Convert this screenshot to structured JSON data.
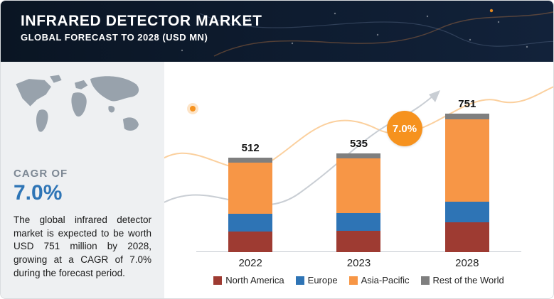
{
  "header": {
    "title": "INFRARED DETECTOR MARKET",
    "subtitle": "GLOBAL FORECAST TO 2028 (USD MN)"
  },
  "sidebar": {
    "cagr_label": "CAGR OF",
    "cagr_value": "7.0%",
    "description": "The global infrared detector market is expected to be worth USD 751 million by 2028, growing at a CAGR of 7.0% during the forecast period."
  },
  "annotation_badge": {
    "value": "7.0%"
  },
  "colors": {
    "header_bg": "#0e1c30",
    "sidebar_bg": "#eef0f2",
    "accent_orange": "#f6921e",
    "cagr_blue": "#2e75b6"
  },
  "chart_data": {
    "type": "bar",
    "stacked": true,
    "units": "USD MN",
    "title": "Infrared Detector Market — Global Forecast to 2028 (USD MN)",
    "categories": [
      "2022",
      "2023",
      "2028"
    ],
    "totals": [
      512,
      535,
      751
    ],
    "series": [
      {
        "name": "North America",
        "color": "#9e3b32",
        "values": [
          110,
          115,
          160
        ]
      },
      {
        "name": "Europe",
        "color": "#2e74b5",
        "values": [
          96,
          95,
          115
        ]
      },
      {
        "name": "Asia-Pacific",
        "color": "#f79646",
        "values": [
          280,
          297,
          445
        ]
      },
      {
        "name": "Rest of the World",
        "color": "#7f7f7f",
        "values": [
          26,
          28,
          31
        ]
      }
    ],
    "legend_position": "bottom",
    "grid": false,
    "growth_annotation": "7.0%"
  }
}
